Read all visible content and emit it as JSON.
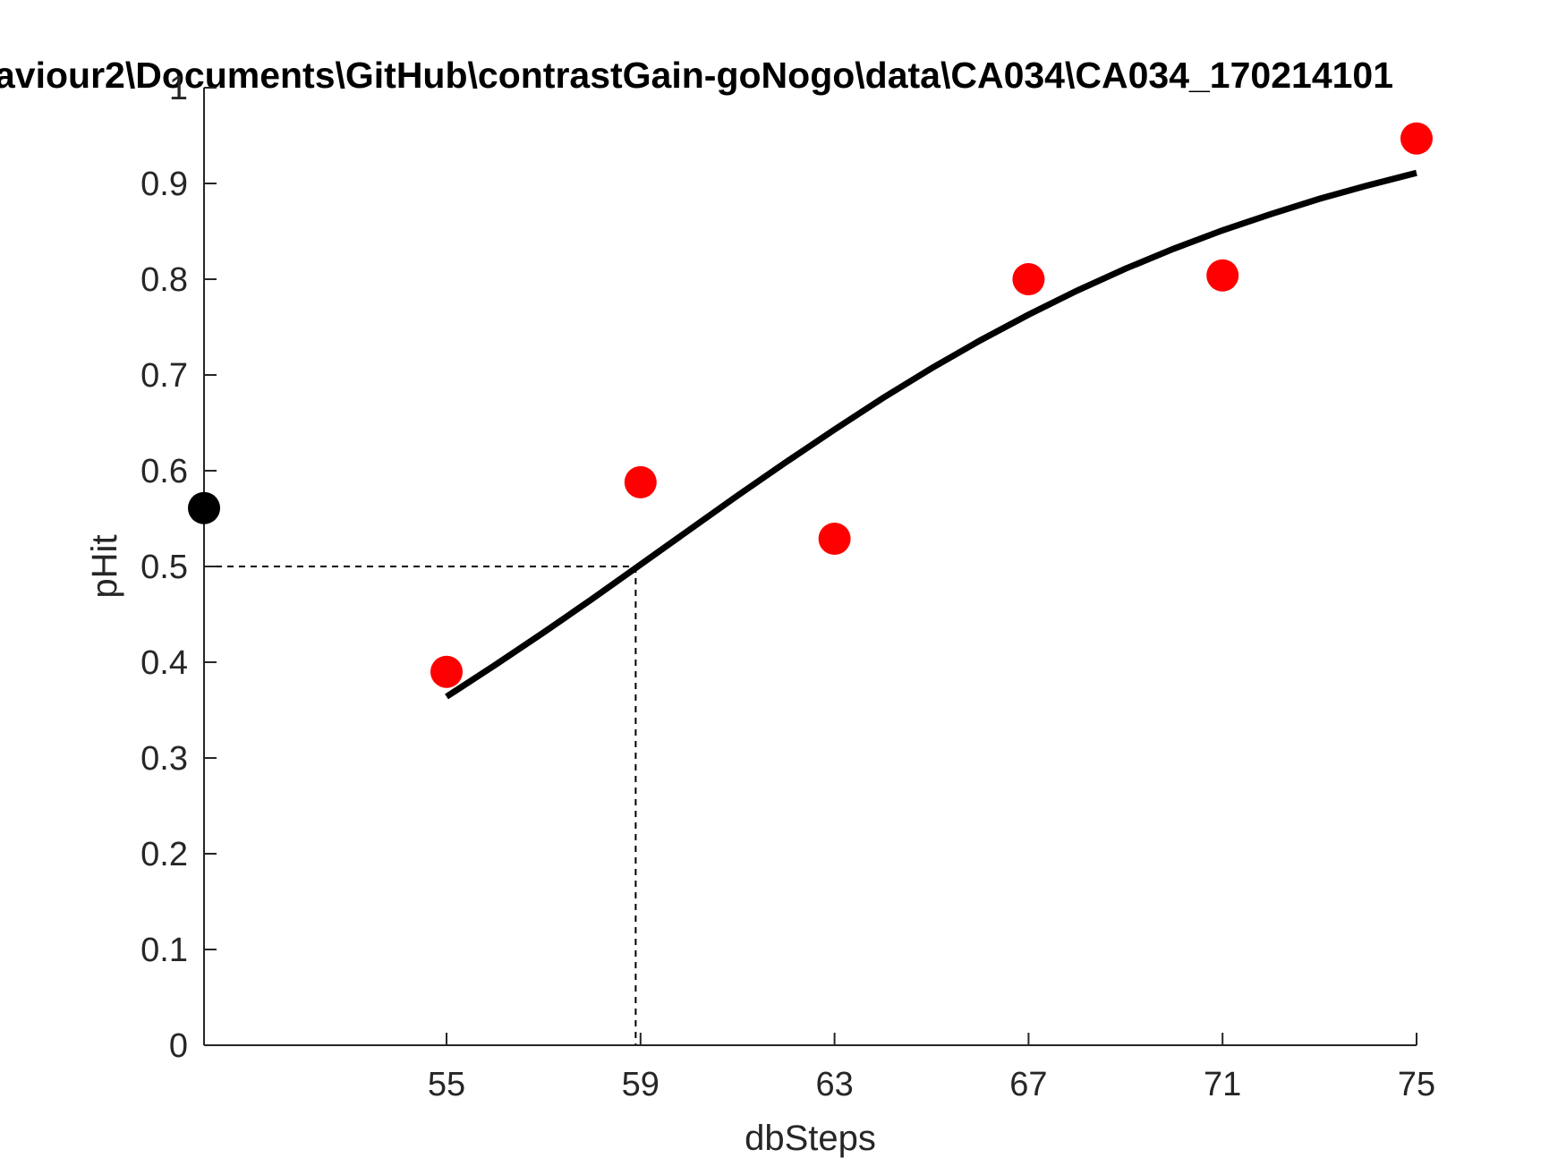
{
  "chart_data": {
    "type": "scatter",
    "title": "aviour2\\Documents\\GitHub\\contrastGain-goNogo\\data\\CA034\\CA034_170214101",
    "xlabel": "dbSteps",
    "ylabel": "pHit",
    "xlim": [
      50,
      75
    ],
    "ylim": [
      0,
      1
    ],
    "xticks": [
      55,
      59,
      63,
      67,
      71,
      75
    ],
    "xtick_labels": [
      "55",
      "59",
      "63",
      "67",
      "71",
      "75"
    ],
    "yticks": [
      0,
      0.1,
      0.2,
      0.3,
      0.4,
      0.5,
      0.6,
      0.7,
      0.8,
      0.9,
      1
    ],
    "ytick_labels": [
      "0",
      "0.1",
      "0.2",
      "0.3",
      "0.4",
      "0.5",
      "0.6",
      "0.7",
      "0.8",
      "0.9",
      "1"
    ],
    "grid": false,
    "box": "left-bottom",
    "series": [
      {
        "kind": "scatter",
        "color": "#ff0000",
        "x": [
          55,
          59,
          63,
          67,
          71,
          75
        ],
        "y": [
          0.39,
          0.588,
          0.529,
          0.8,
          0.804,
          0.947
        ]
      },
      {
        "kind": "scatter",
        "color": "#000000",
        "x": [
          50
        ],
        "y": [
          0.561
        ]
      },
      {
        "kind": "line",
        "color": "#000000",
        "x": [
          55,
          56,
          57,
          58,
          59,
          60,
          61,
          62,
          63,
          64,
          65,
          66,
          67,
          68,
          69,
          70,
          71,
          72,
          73,
          74,
          75
        ],
        "y": [
          0.364,
          0.397,
          0.431,
          0.466,
          0.502,
          0.538,
          0.574,
          0.609,
          0.643,
          0.676,
          0.707,
          0.736,
          0.763,
          0.788,
          0.811,
          0.832,
          0.851,
          0.868,
          0.884,
          0.898,
          0.911
        ]
      }
    ],
    "threshold": {
      "x": 58.9,
      "y": 0.5,
      "color": "#000000",
      "style": "dashed"
    }
  }
}
